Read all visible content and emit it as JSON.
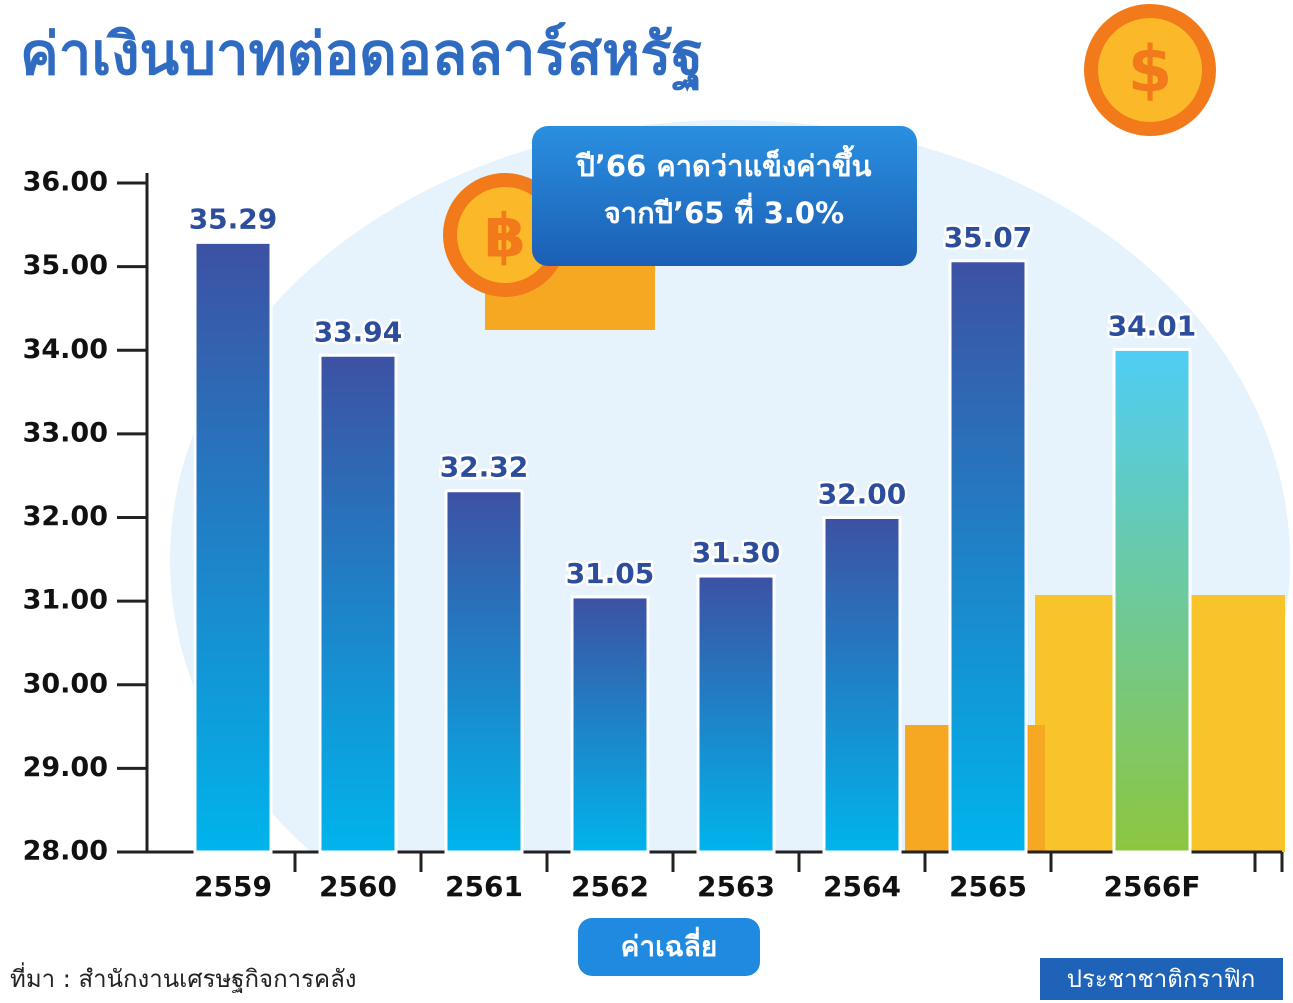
{
  "chart_data": {
    "type": "bar",
    "title": "ค่าเงินบาทต่อดอลลาร์สหรัฐ",
    "categories": [
      "2559",
      "2560",
      "2561",
      "2562",
      "2563",
      "2564",
      "2565",
      "2566F"
    ],
    "values": [
      35.29,
      33.94,
      32.32,
      31.05,
      31.3,
      32.0,
      35.07,
      34.01
    ],
    "value_labels": [
      "35.29",
      "33.94",
      "32.32",
      "31.05",
      "31.30",
      "32.00",
      "35.07",
      "34.01"
    ],
    "colors": [
      [
        "#3d51a3",
        "#00b4ec"
      ],
      [
        "#3d51a3",
        "#00b4ec"
      ],
      [
        "#3d51a3",
        "#00b4ec"
      ],
      [
        "#3d51a3",
        "#00b4ec"
      ],
      [
        "#3d51a3",
        "#00b4ec"
      ],
      [
        "#3d51a3",
        "#00b4ec"
      ],
      [
        "#3d51a3",
        "#00b4ec"
      ],
      [
        "#4fcdf5",
        "#8dc63f"
      ]
    ],
    "ylim": [
      28,
      36
    ],
    "yticks": [
      {
        "value": 28,
        "label": "28.00"
      },
      {
        "value": 29,
        "label": "29.00"
      },
      {
        "value": 30,
        "label": "30.00"
      },
      {
        "value": 31,
        "label": "31.00"
      },
      {
        "value": 32,
        "label": "32.00"
      },
      {
        "value": 33,
        "label": "33.00"
      },
      {
        "value": 34,
        "label": "34.00"
      },
      {
        "value": 35,
        "label": "35.00"
      },
      {
        "value": 36,
        "label": "36.00"
      }
    ],
    "xlabel": "ค่าเฉลี่ย",
    "annotation": [
      "ปี’66 คาดว่าแข็งค่าขึ้น",
      "จากปี’65 ที่ 3.0%"
    ]
  },
  "footer": {
    "source": "ที่มา : สำนักงานเศรษฐกิจการคลัง",
    "brand": "ประชาชาติกราฟิก"
  }
}
